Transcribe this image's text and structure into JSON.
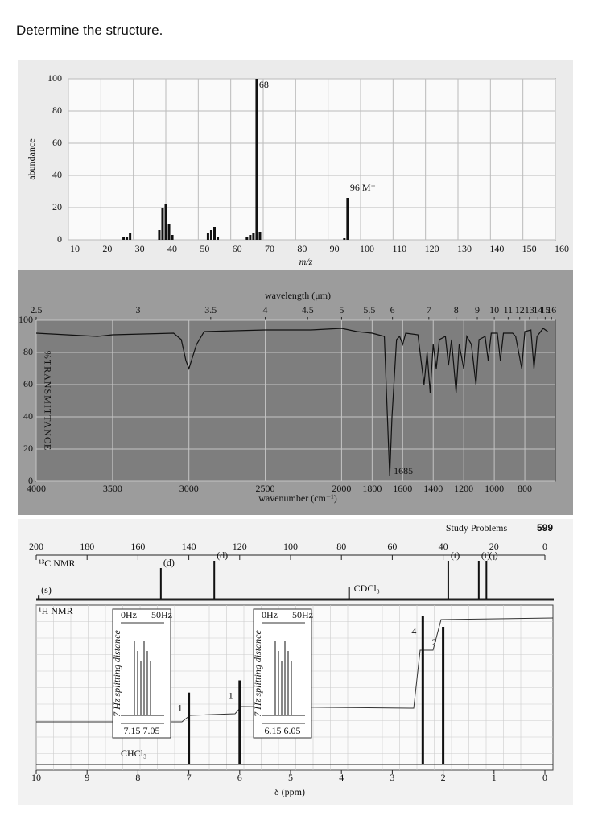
{
  "question": "Determine the structure.",
  "chart_data": [
    {
      "type": "bar",
      "xlabel": "m/z",
      "ylabel": "abundance",
      "color": "#111111",
      "grid": true,
      "x": [
        27,
        28,
        29,
        38,
        39,
        40,
        41,
        42,
        53,
        54,
        55,
        56,
        65,
        66,
        67,
        68,
        69,
        95,
        96
      ],
      "values": [
        2,
        2,
        4,
        6,
        20,
        22,
        10,
        3,
        4,
        6,
        8,
        2,
        2,
        3,
        4,
        100,
        5,
        1,
        26
      ],
      "xlim": [
        10,
        160
      ],
      "xticks": [
        10,
        20,
        30,
        40,
        50,
        60,
        70,
        80,
        90,
        100,
        110,
        120,
        130,
        140,
        150,
        160
      ],
      "ylim": [
        0,
        100
      ],
      "yticks": [
        0,
        20,
        40,
        60,
        80,
        100
      ],
      "annotations": [
        {
          "x": 68,
          "text": "68"
        },
        {
          "x": 96,
          "text": "96 M⁺"
        }
      ]
    },
    {
      "type": "line",
      "xlabel": "wavenumber (cm⁻¹)",
      "x2label": "wavelength (μm)",
      "ylabel": "%TRANSMITTANCE",
      "color": "#111111",
      "grid": true,
      "x": [
        4000,
        3600,
        3500,
        3100,
        3050,
        3020,
        3000,
        2950,
        2900,
        2500,
        2200,
        2000,
        1900,
        1800,
        1720,
        1700,
        1685,
        1670,
        1640,
        1620,
        1600,
        1580,
        1500,
        1460,
        1440,
        1420,
        1400,
        1380,
        1360,
        1320,
        1300,
        1280,
        1250,
        1230,
        1200,
        1180,
        1150,
        1120,
        1100,
        1060,
        1040,
        1020,
        980,
        960,
        940,
        880,
        860,
        820,
        800,
        760,
        740,
        720,
        680,
        650
      ],
      "values": [
        92,
        90,
        91,
        92,
        88,
        75,
        70,
        85,
        93,
        94,
        94,
        95,
        93,
        92,
        90,
        40,
        3,
        40,
        88,
        90,
        85,
        92,
        91,
        60,
        80,
        55,
        85,
        70,
        88,
        90,
        72,
        88,
        55,
        85,
        70,
        90,
        85,
        60,
        88,
        90,
        75,
        92,
        92,
        75,
        92,
        92,
        90,
        70,
        93,
        94,
        70,
        90,
        95,
        93
      ],
      "xlim": [
        4000,
        600
      ],
      "xticks": [
        4000,
        3500,
        3000,
        2500,
        2000,
        1800,
        1600,
        1400,
        1200,
        1000,
        800
      ],
      "x2ticks": [
        2.5,
        3,
        3.5,
        4,
        4.5,
        5,
        5.5,
        6,
        7,
        8,
        9,
        10,
        11,
        12,
        13,
        14,
        15,
        16
      ],
      "ylim": [
        0,
        100
      ],
      "yticks": [
        0,
        20,
        40,
        60,
        80,
        100
      ],
      "annotations": [
        {
          "x": 1685,
          "text": "1685"
        }
      ]
    },
    {
      "type": "nmr",
      "header": "Study Problems",
      "page": "599",
      "xlabel": "δ (ppm)",
      "series": [
        {
          "name": "¹³C NMR",
          "color": "#111111",
          "xlim": [
            200,
            0
          ],
          "xticks": [
            200,
            180,
            160,
            140,
            120,
            100,
            80,
            60,
            40,
            20,
            0
          ],
          "x": [
            199,
            151,
            130,
            77,
            38,
            26,
            23
          ],
          "values": [
            8,
            65,
            80,
            25,
            80,
            80,
            80
          ],
          "labels": [
            "(s)",
            "(d)",
            "(d)",
            "CDCl₃",
            "(t)",
            "(t)",
            "(t)"
          ]
        },
        {
          "name": "¹H NMR",
          "color": "#111111",
          "xlim": [
            10,
            0
          ],
          "xticks": [
            10,
            9,
            8,
            7,
            6,
            5,
            4,
            3,
            2,
            1,
            0
          ],
          "x": [
            7.0,
            6.0,
            2.4,
            2.0
          ],
          "values": [
            47,
            55,
            97,
            90
          ],
          "integrals": [
            1,
            1,
            4,
            2
          ]
        }
      ],
      "solvent": "CHCl₃",
      "insets": [
        {
          "left": "0Hz",
          "right": "50Hz",
          "axis": "7.15  7.05",
          "side": "7 Hz splitting distance"
        },
        {
          "left": "0Hz",
          "right": "50Hz",
          "axis": "6.15  6.05",
          "side": "7 Hz splitting distance"
        }
      ]
    }
  ]
}
